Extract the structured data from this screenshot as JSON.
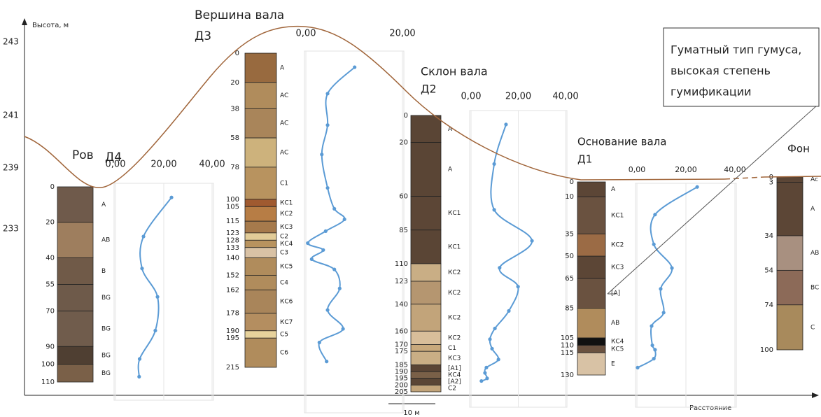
{
  "axis": {
    "label": "Высота, м",
    "ticks": [
      "243",
      "241",
      "239",
      "233"
    ],
    "x_label": "Расстояние",
    "scale_bar": "10 м"
  },
  "profiles": [
    {
      "title": "Ров",
      "code": "Д4",
      "depths": [
        0,
        20,
        40,
        55,
        70,
        90,
        100,
        110
      ],
      "horizons": [
        "A",
        "AB",
        "B",
        "BG",
        "BG",
        "BG",
        "BG"
      ],
      "colors": [
        "#6f5a4b",
        "#9e7e5e",
        "#705a48",
        "#6e5a4a",
        "#705c4c",
        "#4f3f32",
        "#7a6048"
      ],
      "chart": {
        "xlim": [
          0,
          40
        ],
        "xticks": [
          {
            "value": 0,
            "label": "0,00"
          },
          {
            "value": 20,
            "label": "20,00"
          },
          {
            "value": 40,
            "label": "40,00"
          }
        ],
        "values": [
          23.2,
          11.6,
          11,
          17.4,
          16.5,
          10,
          9.8
        ],
        "depths": [
          6,
          28,
          46,
          62,
          81,
          97,
          107
        ]
      }
    },
    {
      "title": "Вершина вала",
      "code": "Д3",
      "depths": [
        0,
        20,
        38,
        58,
        78,
        100,
        105,
        115,
        123,
        128,
        133,
        140,
        152,
        162,
        178,
        190,
        195,
        215
      ],
      "horizons": [
        "A",
        "AC",
        "AC",
        "AC",
        "C1",
        "КС1",
        "КС2",
        "КС3",
        "С2",
        "КС4",
        "С3",
        "КС5",
        "С4",
        "КС6",
        "КС7",
        "С5",
        "С6"
      ],
      "colors": [
        "#986a3f",
        "#b08c5c",
        "#a9855a",
        "#cdb27c",
        "#b8935f",
        "#a05a30",
        "#b77d45",
        "#a67a4c",
        "#e2cc98",
        "#b8935f",
        "#d9c2a5",
        "#b08c5c",
        "#b08c5c",
        "#a9855a",
        "#b48e60",
        "#e7d29c",
        "#b08c5c"
      ],
      "chart": {
        "xlim": [
          0,
          20
        ],
        "xticks": [
          {
            "value": 0,
            "label": "0,00"
          },
          {
            "value": 20,
            "label": "20,00"
          }
        ],
        "values": [
          10.1,
          4.5,
          4.5,
          3.3,
          4.5,
          5.9,
          8.0,
          4.1,
          0.4,
          3.6,
          1.2,
          5.9,
          7.0,
          4.5,
          7.7,
          2.8,
          4.3
        ],
        "depths": [
          9.6,
          27.7,
          49.2,
          69.3,
          92.2,
          106.5,
          113.7,
          121.8,
          130,
          134.7,
          141,
          148,
          161,
          175.8,
          188.7,
          198,
          211
        ]
      }
    },
    {
      "title": "Склон вала",
      "code": "Д2",
      "depths": [
        0,
        20,
        60,
        85,
        110,
        123,
        140,
        160,
        170,
        175,
        185,
        190,
        195,
        200,
        205
      ],
      "horizons": [
        "A",
        "A",
        "КС1",
        "КС1",
        "КС2",
        "КС2",
        "КС2",
        "КС2",
        "С1",
        "КС3",
        "[A1]",
        "КС4",
        "[A2]",
        "С2"
      ],
      "colors": [
        "#5a4535",
        "#5a4535",
        "#5c4636",
        "#5a4535",
        "#c9ae85",
        "#b59670",
        "#c2a47a",
        "#d8be9a",
        "#c8a97c",
        "#c9ae85",
        "#5a4535",
        "#7a6048",
        "#5a4535",
        "#c2a47a"
      ],
      "chart": {
        "xlim": [
          0,
          40
        ],
        "xticks": [
          {
            "value": 0,
            "label": "0,00"
          },
          {
            "value": 20,
            "label": "20,00"
          },
          {
            "value": 40,
            "label": "40,00"
          }
        ],
        "values": [
          14.8,
          9.8,
          9.8,
          25.8,
          12.1,
          19.9,
          16,
          10.1,
          8,
          8.9,
          11.6,
          6.5,
          5.9,
          6.8,
          4.4
        ],
        "depths": [
          6.7,
          36,
          70,
          93,
          113,
          127,
          145,
          158,
          166,
          173,
          181,
          187,
          191,
          195,
          197
        ]
      }
    },
    {
      "title": "Основание вала",
      "code": "Д1",
      "depths": [
        0,
        10,
        35,
        50,
        65,
        85,
        105,
        110,
        115,
        130
      ],
      "horizons": [
        "A",
        "КС1",
        "КС2",
        "КС3",
        "[A]",
        "AB",
        "КС4",
        "КС5",
        "E"
      ],
      "colors": [
        "#5c4636",
        "#6a5240",
        "#9b6b45",
        "#5c4636",
        "#6a5240",
        "#b08c5c",
        "#111111",
        "#6a5240",
        "#d8c2a5"
      ],
      "chart": {
        "xlim": [
          0,
          40
        ],
        "xticks": [
          {
            "value": 0,
            "label": "0,00"
          },
          {
            "value": 20,
            "label": "20,00"
          },
          {
            "value": 40,
            "label": "40,00"
          }
        ],
        "values": [
          24.6,
          7.4,
          6.9,
          14.3,
          9.7,
          10.9,
          6,
          6.3,
          7.4,
          6.9,
          0.3
        ],
        "depths": [
          3.4,
          22,
          42,
          58,
          72,
          88,
          97,
          110,
          113,
          119,
          125
        ]
      }
    },
    {
      "title": "Фон",
      "depths": [
        0,
        3,
        34,
        54,
        74,
        100
      ],
      "horizons": [
        "Ac",
        "A",
        "AB",
        "BC",
        "C"
      ],
      "colors": [
        "#5c4636",
        "#5c4636",
        "#a89080",
        "#8c6a58",
        "#a88a5c"
      ]
    }
  ],
  "note": {
    "lines": [
      "Гуматный тип гумуса,",
      "высокая степень",
      "гумификации"
    ]
  }
}
